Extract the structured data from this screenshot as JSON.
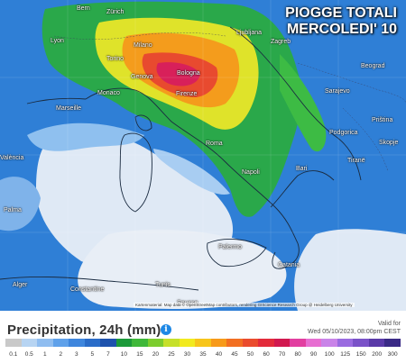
{
  "headline": {
    "line1": "PIOGGE TOTALI",
    "line2": "MERCOLEDI' 10"
  },
  "cities": [
    {
      "name": "Bern",
      "pos": "l1"
    },
    {
      "name": "Milano",
      "pos": "l2"
    },
    {
      "name": "Lyon",
      "pos": "l3"
    },
    {
      "name": "Torino",
      "pos": "l4"
    },
    {
      "name": "Genova",
      "pos": "l5"
    },
    {
      "name": "Bologna",
      "pos": "l6"
    },
    {
      "name": "Firenze",
      "pos": "l7"
    },
    {
      "name": "Monaco",
      "pos": "l8"
    },
    {
      "name": "Marseille",
      "pos": "l9"
    },
    {
      "name": "Ljubljana",
      "pos": "l10"
    },
    {
      "name": "Zagreb",
      "pos": "l11"
    },
    {
      "name": "Beograd",
      "pos": "l12"
    },
    {
      "name": "Sarajevo",
      "pos": "l13"
    },
    {
      "name": "Podgorica",
      "pos": "l14"
    },
    {
      "name": "Priština",
      "pos": "l15"
    },
    {
      "name": "Skopje",
      "pos": "l16"
    },
    {
      "name": "Tiranë",
      "pos": "l17"
    },
    {
      "name": "Roma",
      "pos": "l18"
    },
    {
      "name": "Napoli",
      "pos": "l19"
    },
    {
      "name": "Bari",
      "pos": "l20"
    },
    {
      "name": "Palermo",
      "pos": "l21"
    },
    {
      "name": "Catania",
      "pos": "l22"
    },
    {
      "name": "Alger",
      "pos": "l23"
    },
    {
      "name": "Constantine",
      "pos": "l24"
    },
    {
      "name": "Tunis",
      "pos": "l25"
    },
    {
      "name": "Sousse",
      "pos": "l26"
    },
    {
      "name": "Palma",
      "pos": "l27"
    },
    {
      "name": "València",
      "pos": "l28"
    },
    {
      "name": "Zürich",
      "pos": "l29"
    }
  ],
  "attribution": "Kartenmaterial: Map data © OpenStreetMap contributors, rendering GIScience Research Group @ Heidelberg University",
  "legend": {
    "title": "Precipitation, 24h (mm)",
    "info_icon": "i",
    "valid_label": "Valid for",
    "valid_time": "Wed 05/10/2023, 08:00pm CEST",
    "ticks": [
      "0.1",
      "0.5",
      "1",
      "2",
      "3",
      "5",
      "7",
      "10",
      "15",
      "20",
      "25",
      "30",
      "35",
      "40",
      "45",
      "50",
      "60",
      "70",
      "80",
      "90",
      "100",
      "125",
      "150",
      "200",
      "300"
    ],
    "colors": [
      "#c9c9c9",
      "#b7d4f2",
      "#8fbdf0",
      "#5fa1ea",
      "#3e86dd",
      "#2a6cc8",
      "#1e52ad",
      "#1c9a3a",
      "#3fb83a",
      "#7ccd2e",
      "#c6e02a",
      "#f2ea1f",
      "#f7c51b",
      "#f79a1a",
      "#f26f22",
      "#ea4c2e",
      "#e32b3b",
      "#d1194f",
      "#e23ea0",
      "#e76ed1",
      "#c983e8",
      "#9a6be0",
      "#7a52c8",
      "#5a3aa8",
      "#3a2a86"
    ]
  }
}
